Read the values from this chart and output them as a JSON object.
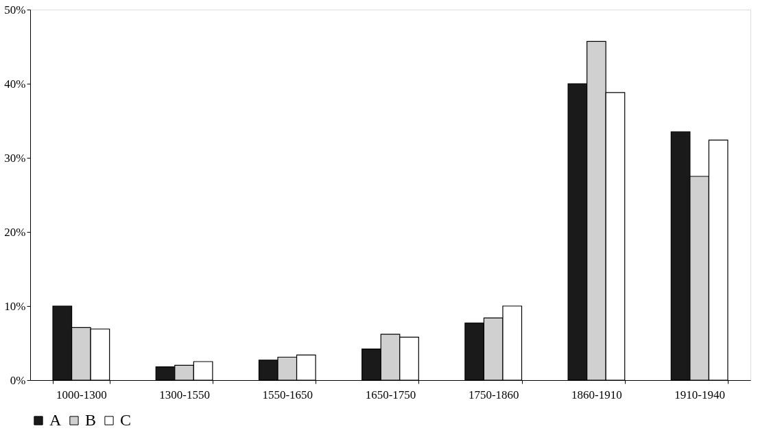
{
  "chart_data": {
    "type": "bar",
    "categories": [
      "1000-1300",
      "1300-1550",
      "1550-1650",
      "1650-1750",
      "1750-1860",
      "1860-1910",
      "1910-1940"
    ],
    "series": [
      {
        "name": "A",
        "color": "#1a1a1a",
        "values": [
          10.0,
          1.8,
          2.7,
          4.2,
          7.7,
          40.0,
          33.5
        ]
      },
      {
        "name": "B",
        "color": "#d0d0d0",
        "values": [
          7.1,
          2.0,
          3.1,
          6.2,
          8.4,
          45.7,
          27.5
        ]
      },
      {
        "name": "C",
        "color": "#ffffff",
        "values": [
          6.9,
          2.5,
          3.4,
          5.8,
          10.0,
          38.8,
          32.4
        ]
      }
    ],
    "ylim": [
      0,
      50
    ],
    "yticks": [
      {
        "value": 0,
        "label": "0%"
      },
      {
        "value": 10,
        "label": "10%"
      },
      {
        "value": 20,
        "label": "20%"
      },
      {
        "value": 30,
        "label": "30%"
      },
      {
        "value": 40,
        "label": "40%"
      },
      {
        "value": 50,
        "label": "50%"
      }
    ],
    "grid": false,
    "legend": "bottom"
  }
}
